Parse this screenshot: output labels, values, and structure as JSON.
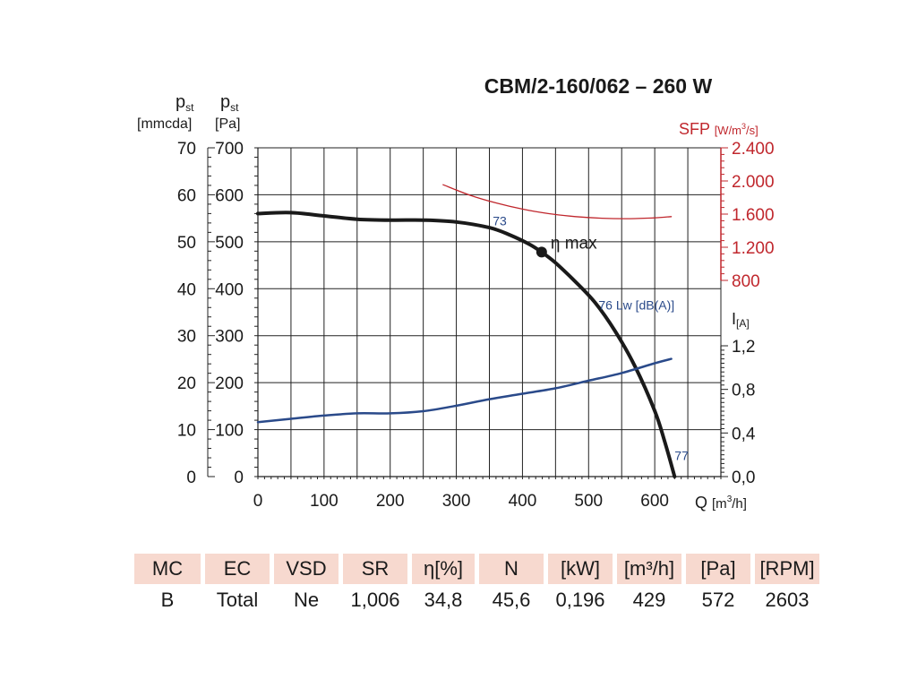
{
  "chart_data": {
    "type": "line",
    "title": "CBM/2-160/062 – 260 W",
    "left_axis_mmcda": {
      "label": "p",
      "sub": "st",
      "unit": "[mmcda]",
      "ticks": [
        "0",
        "10",
        "20",
        "30",
        "40",
        "50",
        "60",
        "70"
      ],
      "range": [
        0,
        70
      ]
    },
    "left_axis_pa": {
      "label": "p",
      "sub": "st",
      "unit": "[Pa]",
      "ticks": [
        "0",
        "100",
        "200",
        "300",
        "400",
        "500",
        "600",
        "700"
      ],
      "range": [
        0,
        700
      ]
    },
    "x_axis": {
      "label": "Q",
      "unit_prefix": "[m",
      "unit_sup": "3",
      "unit_suffix": "/h]",
      "ticks": [
        "0",
        "100",
        "200",
        "300",
        "400",
        "500",
        "600"
      ],
      "range": [
        0,
        700
      ]
    },
    "right_axis_sfp": {
      "label": "SFP",
      "unit_prefix": "[W/m",
      "unit_sup": "3",
      "unit_suffix": "/s]",
      "ticks": [
        "800",
        "1.200",
        "1.600",
        "2.000",
        "2.400"
      ],
      "values": [
        800,
        1200,
        1600,
        2000,
        2400
      ],
      "color": "#c0272d"
    },
    "right_axis_current": {
      "label": "I",
      "unit": "[A]",
      "ticks": [
        "0,0",
        "0,4",
        "0,8",
        "1,2"
      ],
      "values": [
        0,
        0.4,
        0.8,
        1.2
      ]
    },
    "grid": true,
    "series": [
      {
        "axis": "pa",
        "color": "#1a1a1a",
        "points": [
          [
            0,
            560
          ],
          [
            50,
            562
          ],
          [
            100,
            555
          ],
          [
            150,
            548
          ],
          [
            200,
            546
          ],
          [
            250,
            546
          ],
          [
            300,
            542
          ],
          [
            350,
            530
          ],
          [
            380,
            515
          ],
          [
            410,
            495
          ],
          [
            429,
            478
          ],
          [
            450,
            455
          ],
          [
            480,
            415
          ],
          [
            510,
            370
          ],
          [
            540,
            310
          ],
          [
            570,
            235
          ],
          [
            600,
            140
          ],
          [
            615,
            75
          ],
          [
            630,
            0
          ]
        ]
      },
      {
        "axis": "current",
        "color": "#2a4a8a",
        "points": [
          [
            0,
            0.5
          ],
          [
            50,
            0.53
          ],
          [
            100,
            0.56
          ],
          [
            150,
            0.58
          ],
          [
            200,
            0.58
          ],
          [
            250,
            0.6
          ],
          [
            300,
            0.65
          ],
          [
            350,
            0.71
          ],
          [
            400,
            0.76
          ],
          [
            450,
            0.81
          ],
          [
            500,
            0.88
          ],
          [
            550,
            0.95
          ],
          [
            600,
            1.04
          ],
          [
            625,
            1.08
          ]
        ]
      },
      {
        "axis": "sfp",
        "color": "#c0272d",
        "points": [
          [
            280,
            1955
          ],
          [
            320,
            1830
          ],
          [
            360,
            1735
          ],
          [
            400,
            1660
          ],
          [
            440,
            1605
          ],
          [
            480,
            1570
          ],
          [
            520,
            1550
          ],
          [
            560,
            1545
          ],
          [
            600,
            1555
          ],
          [
            625,
            1570
          ]
        ]
      }
    ],
    "annotations": [
      {
        "text": "73",
        "x": 355,
        "y": 545,
        "axis": "pa",
        "color": "#2a4a8a"
      },
      {
        "text": "76  Lw [dB(A)]",
        "x": 515,
        "y": 365,
        "axis": "pa",
        "color": "#2a4a8a"
      },
      {
        "text": "77",
        "x": 630,
        "y": 45,
        "axis": "pa",
        "color": "#2a4a8a"
      }
    ],
    "marker": {
      "text": "η max",
      "x": 429,
      "y": 478,
      "axis": "pa"
    }
  },
  "table": {
    "headers": [
      "MC",
      "EC",
      "VSD",
      "SR",
      "η[%]",
      "N",
      "[kW]",
      "[m³/h]",
      "[Pa]",
      "[RPM]"
    ],
    "values": [
      "B",
      "Total",
      "Ne",
      "1,006",
      "34,8",
      "45,6",
      "0,196",
      "429",
      "572",
      "2603"
    ]
  }
}
